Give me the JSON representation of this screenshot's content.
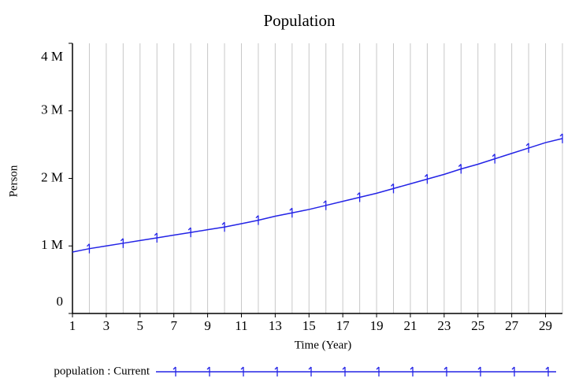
{
  "chart_data": {
    "type": "line",
    "title": "Population",
    "x_label": "Time (Year)",
    "y_label": "Person",
    "x": [
      1,
      2,
      3,
      4,
      5,
      6,
      7,
      8,
      9,
      10,
      11,
      12,
      13,
      14,
      15,
      16,
      17,
      18,
      19,
      20,
      21,
      22,
      23,
      24,
      25,
      26,
      27,
      28,
      29,
      30
    ],
    "series": [
      {
        "name": "population : Current",
        "color": "#2323e6",
        "values": [
          910000,
          960000,
          1000000,
          1040000,
          1080000,
          1120000,
          1160000,
          1200000,
          1240000,
          1280000,
          1330000,
          1380000,
          1440000,
          1490000,
          1540000,
          1600000,
          1660000,
          1720000,
          1780000,
          1850000,
          1920000,
          1990000,
          2060000,
          2140000,
          2210000,
          2290000,
          2370000,
          2450000,
          2530000,
          2590000
        ]
      }
    ],
    "xlim": [
      1,
      30
    ],
    "xticks": [
      1,
      3,
      5,
      7,
      9,
      11,
      13,
      15,
      17,
      19,
      21,
      23,
      25,
      27,
      29
    ],
    "x_minor_ticks": [
      2,
      4,
      6,
      8,
      10,
      12,
      14,
      16,
      18,
      20,
      22,
      24,
      26,
      28,
      30
    ],
    "ylim": [
      0,
      4000000
    ],
    "yticks": [
      0,
      {
        "value": 1000000,
        "label": "1 M"
      },
      {
        "value": 2000000,
        "label": "2 M"
      },
      {
        "value": 3000000,
        "label": "3 M"
      },
      {
        "value": 4000000,
        "label": "4 M"
      }
    ],
    "grid": true
  }
}
